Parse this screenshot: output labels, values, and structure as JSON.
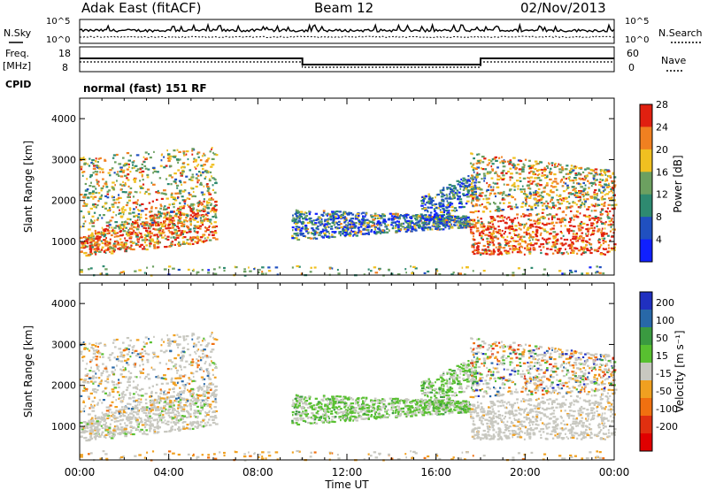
{
  "header": {
    "station": "Adak East (fitACF)",
    "beam": "Beam 12",
    "date": "02/Nov/2013"
  },
  "noise_panel": {
    "left_label": "N.Sky",
    "right_label": "N.Search",
    "left_ticks": [
      "10^5",
      "10^0"
    ],
    "right_ticks": [
      "10^5",
      "10^0"
    ]
  },
  "freq_panel": {
    "left_label_1": "Freq.",
    "left_label_2": "[MHz]",
    "left_ticks": [
      "18",
      "8"
    ],
    "right_label": "Nave",
    "right_ticks": [
      "60",
      "0"
    ],
    "cpid_label": "CPID",
    "cpid_value": "normal (fast) 151 RF"
  },
  "chart_data": [
    {
      "type": "heatmap",
      "title": "",
      "xlabel": "",
      "ylabel": "Slant Range [km]",
      "yticks": [
        "1000",
        "2000",
        "3000",
        "4000"
      ],
      "ylim": [
        180,
        4500
      ],
      "colorbar_label": "Power [dB]",
      "colorbar_ticks": [
        "4",
        "8",
        "12",
        "16",
        "20",
        "24",
        "28"
      ],
      "colorbar_colors": [
        "#1020ff",
        "#2050c0",
        "#2e8a70",
        "#6ca060",
        "#f0c020",
        "#f08020",
        "#e02010"
      ]
    },
    {
      "type": "heatmap",
      "title": "",
      "xlabel": "Time UT",
      "ylabel": "Slant Range [km]",
      "yticks": [
        "1000",
        "2000",
        "3000",
        "4000"
      ],
      "ylim": [
        180,
        4500
      ],
      "xticks": [
        "00:00",
        "04:00",
        "08:00",
        "12:00",
        "16:00",
        "20:00",
        "00:00"
      ],
      "colorbar_label": "Velocity [m s⁻¹]",
      "colorbar_ticks": [
        "200",
        "100",
        "50",
        "15",
        "-15",
        "-50",
        "-100",
        "-200"
      ],
      "colorbar_colors": [
        "#2030c0",
        "#2868a8",
        "#3a9a40",
        "#58c030",
        "#c8c8c0",
        "#f0a020",
        "#f07010",
        "#e03010",
        "#e00000"
      ]
    }
  ]
}
